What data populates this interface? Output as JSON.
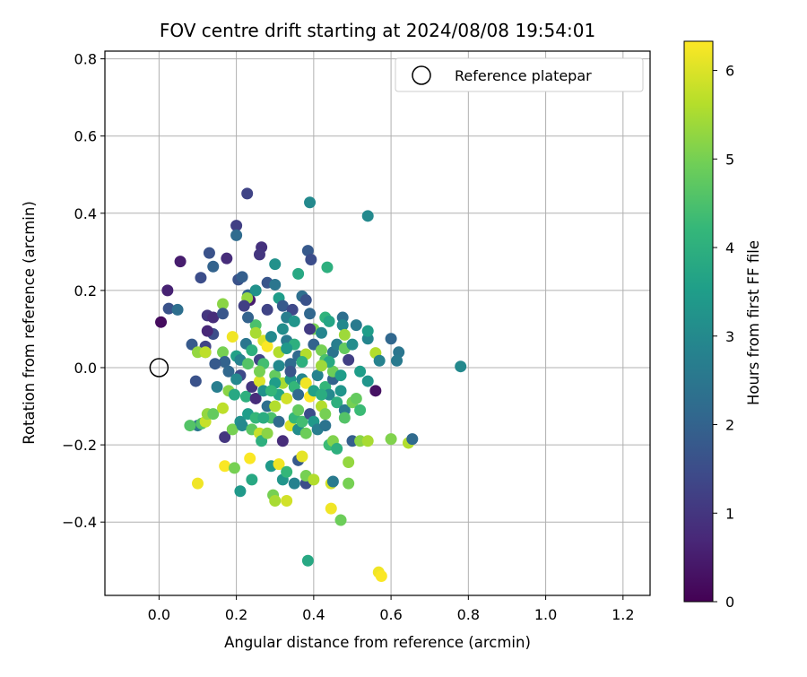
{
  "chart_data": {
    "type": "scatter",
    "title": "FOV centre drift starting at 2024/08/08 19:54:01",
    "xlabel": "Angular distance from reference (arcmin)",
    "ylabel": "Rotation from reference (arcmin)",
    "xlim": [
      -0.14,
      1.27
    ],
    "ylim": [
      -0.59,
      0.82
    ],
    "xticks": [
      0.0,
      0.2,
      0.4,
      0.6,
      0.8,
      1.0,
      1.2
    ],
    "yticks": [
      -0.4,
      -0.2,
      0.0,
      0.2,
      0.4,
      0.6,
      0.8
    ],
    "xtick_labels": [
      "0.0",
      "0.2",
      "0.4",
      "0.6",
      "0.8",
      "1.0",
      "1.2"
    ],
    "ytick_labels": [
      "−0.4",
      "−0.2",
      "0.0",
      "0.2",
      "0.4",
      "0.6",
      "0.8"
    ],
    "grid": true,
    "legend": {
      "position": "upper-right",
      "entries": [
        "Reference platepar"
      ]
    },
    "reference_point": {
      "x": 0.0,
      "y": 0.0
    },
    "colorbar": {
      "label": "Hours from first FF file",
      "range": [
        0,
        6.33
      ],
      "ticks": [
        0,
        1,
        2,
        3,
        4,
        5,
        6
      ],
      "tick_labels": [
        "0",
        "1",
        "2",
        "3",
        "4",
        "5",
        "6"
      ],
      "colormap": "viridis"
    },
    "colormap_stops": [
      "#440154",
      "#482878",
      "#3e4989",
      "#31688e",
      "#26828e",
      "#1f9e89",
      "#35b779",
      "#6ece58",
      "#b5de2b",
      "#fde725"
    ],
    "points": [
      [
        0.005,
        0.118,
        0.2
      ],
      [
        0.022,
        0.2,
        0.6
      ],
      [
        0.055,
        0.275,
        0.5
      ],
      [
        0.108,
        0.233,
        1.5
      ],
      [
        0.13,
        0.297,
        1.6
      ],
      [
        0.14,
        0.262,
        2.0
      ],
      [
        0.175,
        0.283,
        0.8
      ],
      [
        0.2,
        0.368,
        1.2
      ],
      [
        0.228,
        0.451,
        1.3
      ],
      [
        0.265,
        0.312,
        0.9
      ],
      [
        0.2,
        0.343,
        2.2
      ],
      [
        0.26,
        0.293,
        1.0
      ],
      [
        0.3,
        0.268,
        3.2
      ],
      [
        0.39,
        0.428,
        3.0
      ],
      [
        0.385,
        0.303,
        1.8
      ],
      [
        0.393,
        0.28,
        1.5
      ],
      [
        0.54,
        0.393,
        3.0
      ],
      [
        0.435,
        0.26,
        4.0
      ],
      [
        0.36,
        0.243,
        3.8
      ],
      [
        0.025,
        0.153,
        1.6
      ],
      [
        0.048,
        0.15,
        2.3
      ],
      [
        0.165,
        0.165,
        5.2
      ],
      [
        0.125,
        0.135,
        1.0
      ],
      [
        0.14,
        0.13,
        0.8
      ],
      [
        0.165,
        0.14,
        1.7
      ],
      [
        0.205,
        0.228,
        1.6
      ],
      [
        0.215,
        0.235,
        1.9
      ],
      [
        0.23,
        0.188,
        2.0
      ],
      [
        0.235,
        0.175,
        0.5
      ],
      [
        0.25,
        0.2,
        3.2
      ],
      [
        0.228,
        0.18,
        5.3
      ],
      [
        0.22,
        0.16,
        1.2
      ],
      [
        0.28,
        0.22,
        1.7
      ],
      [
        0.3,
        0.215,
        2.5
      ],
      [
        0.31,
        0.18,
        3.5
      ],
      [
        0.32,
        0.16,
        1.8
      ],
      [
        0.345,
        0.15,
        1.4
      ],
      [
        0.37,
        0.185,
        2.3
      ],
      [
        0.38,
        0.175,
        1.6
      ],
      [
        0.39,
        0.14,
        2.1
      ],
      [
        0.4,
        0.1,
        5.0
      ],
      [
        0.43,
        0.13,
        4.1
      ],
      [
        0.44,
        0.12,
        3.7
      ],
      [
        0.475,
        0.13,
        2.3
      ],
      [
        0.475,
        0.11,
        3.0
      ],
      [
        0.51,
        0.11,
        2.6
      ],
      [
        0.54,
        0.075,
        2.9
      ],
      [
        0.54,
        0.095,
        3.5
      ],
      [
        0.6,
        0.075,
        2.1
      ],
      [
        0.62,
        0.04,
        2.5
      ],
      [
        0.615,
        0.018,
        2.6
      ],
      [
        0.56,
        0.038,
        5.6
      ],
      [
        0.57,
        0.018,
        2.8
      ],
      [
        0.78,
        0.003,
        3.0
      ],
      [
        0.085,
        0.06,
        1.8
      ],
      [
        0.12,
        0.04,
        2.5
      ],
      [
        0.14,
        0.087,
        1.5
      ],
      [
        0.125,
        0.095,
        0.7
      ],
      [
        0.12,
        0.055,
        1.3
      ],
      [
        0.1,
        0.04,
        5.3
      ],
      [
        0.12,
        0.04,
        5.7
      ],
      [
        0.165,
        0.04,
        5.0
      ],
      [
        0.17,
        0.015,
        2.0
      ],
      [
        0.18,
        -0.01,
        2.1
      ],
      [
        0.19,
        0.08,
        6.2
      ],
      [
        0.2,
        0.03,
        3.6
      ],
      [
        0.21,
        0.02,
        2.8
      ],
      [
        0.225,
        0.062,
        2.5
      ],
      [
        0.24,
        0.045,
        4.0
      ],
      [
        0.25,
        0.11,
        4.5
      ],
      [
        0.26,
        0.02,
        1.3
      ],
      [
        0.27,
        0.07,
        6.0
      ],
      [
        0.28,
        0.055,
        6.3
      ],
      [
        0.29,
        0.08,
        3.0
      ],
      [
        0.31,
        0.04,
        5.6
      ],
      [
        0.32,
        0.1,
        3.1
      ],
      [
        0.33,
        0.07,
        2.6
      ],
      [
        0.35,
        0.06,
        4.0
      ],
      [
        0.36,
        0.03,
        2.2
      ],
      [
        0.38,
        0.035,
        5.6
      ],
      [
        0.4,
        0.06,
        2.0
      ],
      [
        0.42,
        0.045,
        5.0
      ],
      [
        0.43,
        0.02,
        4.5
      ],
      [
        0.45,
        0.04,
        2.4
      ],
      [
        0.46,
        0.06,
        2.7
      ],
      [
        0.48,
        0.05,
        4.8
      ],
      [
        0.49,
        0.02,
        1.2
      ],
      [
        0.52,
        -0.01,
        3.5
      ],
      [
        0.54,
        -0.035,
        3.3
      ],
      [
        0.56,
        -0.06,
        0.3
      ],
      [
        0.095,
        -0.035,
        1.6
      ],
      [
        0.15,
        -0.05,
        2.7
      ],
      [
        0.18,
        -0.06,
        5.2
      ],
      [
        0.195,
        -0.07,
        3.8
      ],
      [
        0.21,
        -0.02,
        1.4
      ],
      [
        0.225,
        -0.075,
        4.0
      ],
      [
        0.24,
        -0.05,
        1.0
      ],
      [
        0.25,
        -0.08,
        0.8
      ],
      [
        0.26,
        -0.035,
        6.0
      ],
      [
        0.27,
        -0.06,
        3.2
      ],
      [
        0.28,
        -0.1,
        2.3
      ],
      [
        0.3,
        -0.02,
        4.8
      ],
      [
        0.31,
        -0.07,
        3.7
      ],
      [
        0.32,
        -0.04,
        5.5
      ],
      [
        0.33,
        -0.08,
        5.9
      ],
      [
        0.34,
        -0.03,
        3.4
      ],
      [
        0.35,
        -0.05,
        4.2
      ],
      [
        0.36,
        -0.07,
        2.2
      ],
      [
        0.37,
        -0.03,
        2.9
      ],
      [
        0.38,
        -0.04,
        6.2
      ],
      [
        0.39,
        -0.075,
        6.3
      ],
      [
        0.4,
        -0.06,
        3.6
      ],
      [
        0.41,
        -0.02,
        2.8
      ],
      [
        0.42,
        -0.1,
        5.6
      ],
      [
        0.43,
        -0.05,
        4.2
      ],
      [
        0.44,
        -0.07,
        3.0
      ],
      [
        0.45,
        -0.03,
        2.0
      ],
      [
        0.46,
        -0.09,
        4.0
      ],
      [
        0.47,
        -0.06,
        3.3
      ],
      [
        0.48,
        -0.11,
        2.6
      ],
      [
        0.5,
        -0.09,
        5.0
      ],
      [
        0.51,
        -0.08,
        4.8
      ],
      [
        0.52,
        -0.11,
        4.3
      ],
      [
        0.1,
        -0.15,
        2.5
      ],
      [
        0.11,
        -0.145,
        4.6
      ],
      [
        0.12,
        -0.14,
        5.8
      ],
      [
        0.125,
        -0.12,
        5.3
      ],
      [
        0.14,
        -0.12,
        4.8
      ],
      [
        0.165,
        -0.105,
        5.7
      ],
      [
        0.17,
        -0.18,
        1.0
      ],
      [
        0.19,
        -0.16,
        5.0
      ],
      [
        0.21,
        -0.14,
        3.2
      ],
      [
        0.215,
        -0.15,
        3.0
      ],
      [
        0.23,
        -0.12,
        3.5
      ],
      [
        0.24,
        -0.16,
        4.7
      ],
      [
        0.25,
        -0.13,
        4.2
      ],
      [
        0.26,
        -0.17,
        5.8
      ],
      [
        0.265,
        -0.19,
        4.0
      ],
      [
        0.28,
        -0.17,
        5.2
      ],
      [
        0.29,
        -0.13,
        4.5
      ],
      [
        0.3,
        -0.1,
        5.6
      ],
      [
        0.31,
        -0.14,
        2.2
      ],
      [
        0.32,
        -0.19,
        0.8
      ],
      [
        0.34,
        -0.15,
        6.0
      ],
      [
        0.35,
        -0.13,
        4.2
      ],
      [
        0.36,
        -0.16,
        3.1
      ],
      [
        0.37,
        -0.14,
        4.4
      ],
      [
        0.38,
        -0.17,
        4.9
      ],
      [
        0.39,
        -0.12,
        1.5
      ],
      [
        0.4,
        -0.14,
        3.4
      ],
      [
        0.41,
        -0.16,
        2.7
      ],
      [
        0.43,
        -0.12,
        5.0
      ],
      [
        0.44,
        -0.2,
        4.3
      ],
      [
        0.45,
        -0.19,
        5.1
      ],
      [
        0.46,
        -0.21,
        4.0
      ],
      [
        0.48,
        -0.13,
        4.6
      ],
      [
        0.5,
        -0.19,
        1.9
      ],
      [
        0.52,
        -0.19,
        5.2
      ],
      [
        0.54,
        -0.19,
        5.5
      ],
      [
        0.6,
        -0.185,
        5.1
      ],
      [
        0.645,
        -0.195,
        5.6
      ],
      [
        0.655,
        -0.185,
        2.2
      ],
      [
        0.1,
        -0.3,
        6.2
      ],
      [
        0.17,
        -0.255,
        6.3
      ],
      [
        0.195,
        -0.26,
        5.0
      ],
      [
        0.21,
        -0.32,
        3.4
      ],
      [
        0.235,
        -0.235,
        6.3
      ],
      [
        0.24,
        -0.29,
        3.8
      ],
      [
        0.29,
        -0.255,
        3.4
      ],
      [
        0.295,
        -0.33,
        5.0
      ],
      [
        0.3,
        -0.345,
        5.5
      ],
      [
        0.31,
        -0.25,
        6.2
      ],
      [
        0.32,
        -0.29,
        3.3
      ],
      [
        0.33,
        -0.27,
        4.2
      ],
      [
        0.33,
        -0.345,
        5.9
      ],
      [
        0.35,
        -0.3,
        2.8
      ],
      [
        0.36,
        -0.24,
        1.8
      ],
      [
        0.37,
        -0.23,
        6.1
      ],
      [
        0.38,
        -0.3,
        1.5
      ],
      [
        0.38,
        -0.28,
        5.0
      ],
      [
        0.4,
        -0.29,
        5.6
      ],
      [
        0.445,
        -0.3,
        5.9
      ],
      [
        0.45,
        -0.295,
        2.6
      ],
      [
        0.445,
        -0.365,
        6.2
      ],
      [
        0.47,
        -0.395,
        4.9
      ],
      [
        0.49,
        -0.3,
        5.0
      ],
      [
        0.49,
        -0.245,
        5.3
      ],
      [
        0.385,
        -0.5,
        3.8
      ],
      [
        0.568,
        -0.53,
        6.2
      ],
      [
        0.575,
        -0.54,
        6.3
      ],
      [
        0.08,
        -0.15,
        4.6
      ],
      [
        0.145,
        0.01,
        1.8
      ],
      [
        0.23,
        0.13,
        2.0
      ],
      [
        0.33,
        0.13,
        2.7
      ],
      [
        0.35,
        0.12,
        3.3
      ],
      [
        0.42,
        0.09,
        2.9
      ],
      [
        0.39,
        0.1,
        1.1
      ],
      [
        0.3,
        -0.04,
        3.5
      ],
      [
        0.27,
        0.01,
        4.4
      ],
      [
        0.2,
        -0.03,
        3.0
      ],
      [
        0.45,
        -0.01,
        4.9
      ],
      [
        0.34,
        0.01,
        2.2
      ],
      [
        0.44,
        0.015,
        3.8
      ],
      [
        0.28,
        0.15,
        1.3
      ],
      [
        0.36,
        -0.11,
        4.8
      ],
      [
        0.42,
        0.005,
        5.4
      ],
      [
        0.27,
        -0.13,
        3.9
      ],
      [
        0.47,
        -0.02,
        3.5
      ],
      [
        0.43,
        -0.15,
        2.4
      ],
      [
        0.25,
        0.09,
        5.5
      ],
      [
        0.31,
        0.005,
        3.0
      ],
      [
        0.37,
        0.015,
        4.0
      ],
      [
        0.26,
        -0.01,
        5.0
      ],
      [
        0.34,
        -0.01,
        1.7
      ],
      [
        0.33,
        0.05,
        3.4
      ],
      [
        0.42,
        -0.07,
        3.9
      ],
      [
        0.5,
        0.06,
        3.1
      ],
      [
        0.48,
        0.085,
        5.4
      ],
      [
        0.29,
        -0.06,
        4.2
      ],
      [
        0.23,
        0.01,
        4.6
      ]
    ]
  }
}
